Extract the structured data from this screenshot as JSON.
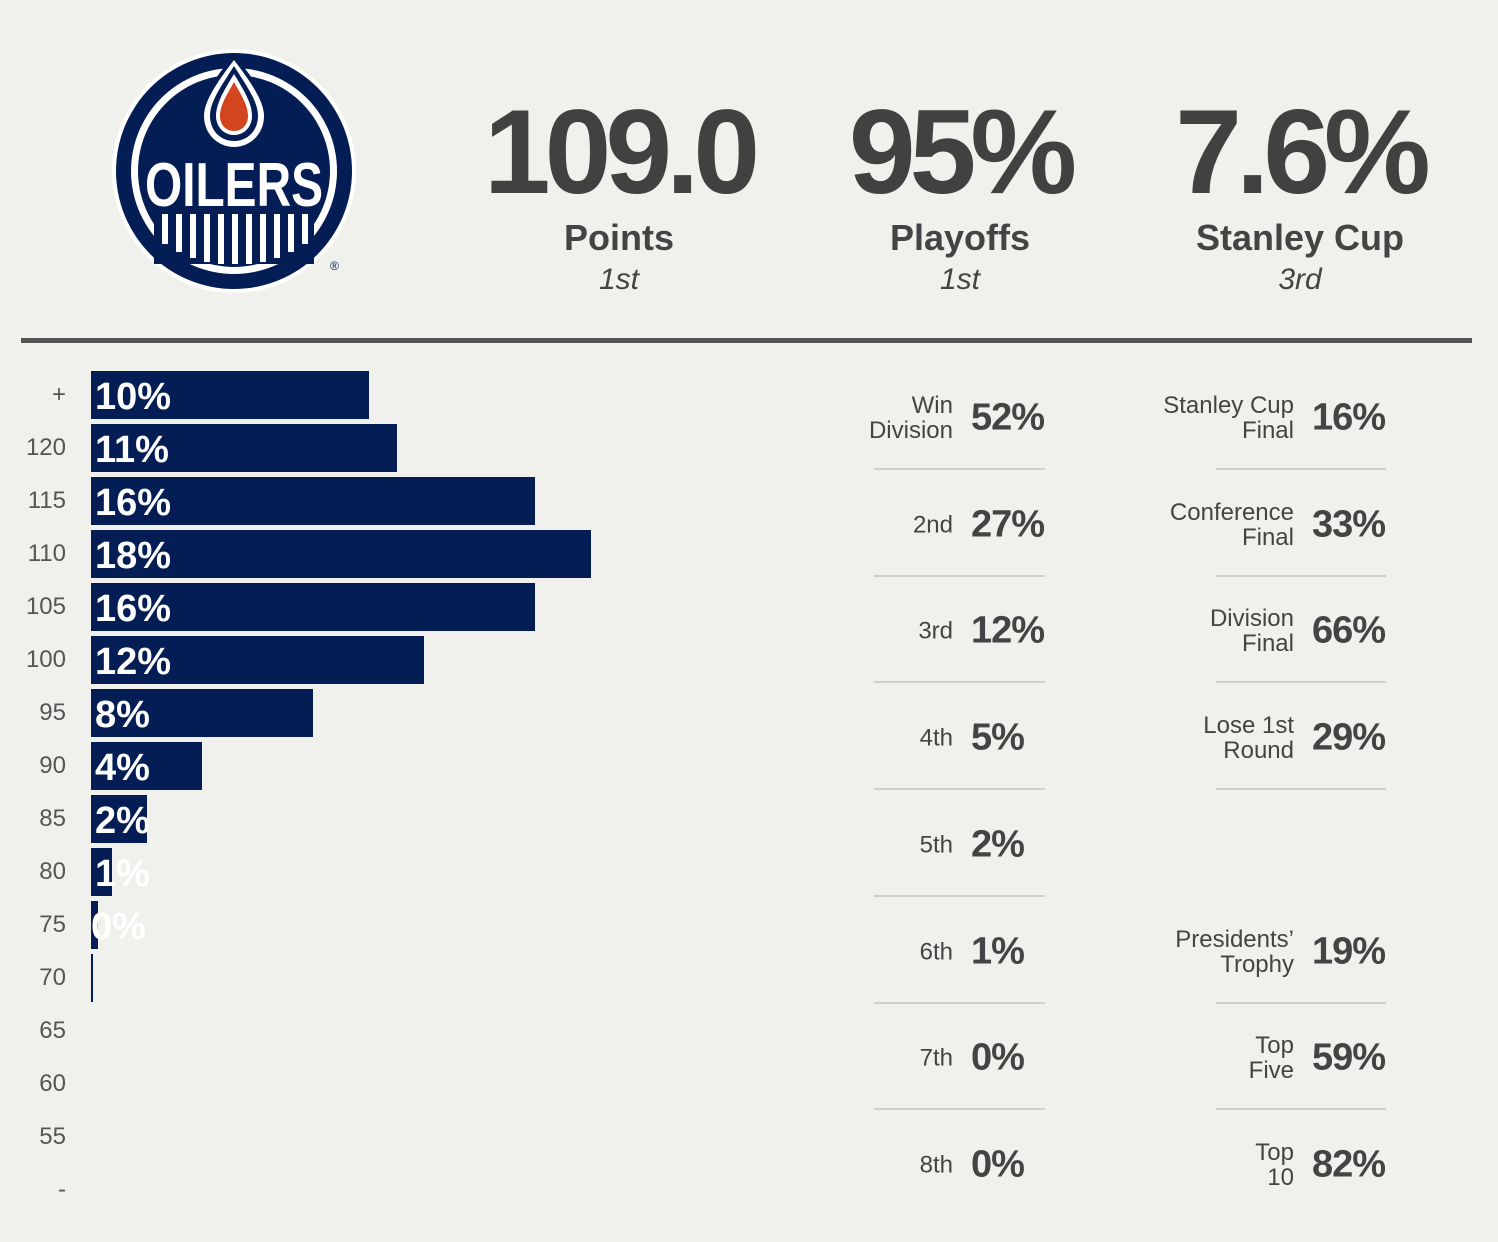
{
  "team": {
    "name": "Oilers",
    "logo_wordmark": "OILERS",
    "colors": {
      "navy": "#041e55",
      "orange": "#d2451e",
      "white": "#ffffff"
    }
  },
  "headline_stats": [
    {
      "value": "109.0",
      "label": "Points",
      "rank": "1st"
    },
    {
      "value": "95%",
      "label": "Playoffs",
      "rank": "1st"
    },
    {
      "value": "7.6%",
      "label": "Stanley Cup",
      "rank": "3rd"
    }
  ],
  "chart_data": {
    "type": "bar",
    "orientation": "horizontal",
    "title": "",
    "xlabel": "",
    "ylabel": "",
    "categories": [
      "+",
      "120",
      "115",
      "110",
      "105",
      "100",
      "95",
      "90",
      "85",
      "80",
      "75",
      "70",
      "65",
      "60",
      "55",
      "-"
    ],
    "values": [
      10,
      11,
      16,
      18,
      16,
      12,
      8,
      4,
      2,
      0.75,
      0.25,
      0.05,
      0,
      0,
      0,
      0
    ],
    "labels": [
      "10%",
      "11%",
      "16%",
      "18%",
      "16%",
      "12%",
      "8%",
      "4%",
      "2%",
      "1%",
      "0%",
      "",
      "",
      "",
      "",
      ""
    ],
    "xlim": [
      0,
      18
    ],
    "grid": false,
    "bar_color": "#041e55"
  },
  "division_finish": [
    {
      "label": "Win Division",
      "value": "52%"
    },
    {
      "label": "2nd",
      "value": "27%"
    },
    {
      "label": "3rd",
      "value": "12%"
    },
    {
      "label": "4th",
      "value": "5%"
    },
    {
      "label": "5th",
      "value": "2%"
    },
    {
      "label": "6th",
      "value": "1%"
    },
    {
      "label": "7th",
      "value": "0%"
    },
    {
      "label": "8th",
      "value": "0%"
    }
  ],
  "playoff_rounds": [
    {
      "label": "Stanley Cup Final",
      "value": "16%"
    },
    {
      "label": "Conference Final",
      "value": "33%"
    },
    {
      "label": "Division Final",
      "value": "66%"
    },
    {
      "label": "Lose 1st Round",
      "value": "29%"
    }
  ],
  "league_finish": [
    {
      "label": "Presidents’ Trophy",
      "value": "19%"
    },
    {
      "label": "Top Five",
      "value": "59%"
    },
    {
      "label": "Top 10",
      "value": "82%"
    }
  ]
}
